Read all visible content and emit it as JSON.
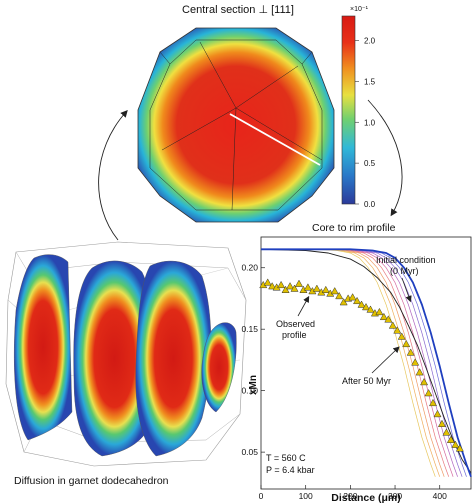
{
  "section": {
    "title": "Central section ⊥ [111]",
    "colorbar": {
      "exponent_label": "×10⁻¹",
      "ticks": [
        "2.0",
        "1.5",
        "1.0",
        "0.5",
        "0.0"
      ],
      "tick_values": [
        2.0,
        1.5,
        1.0,
        0.5,
        0.0
      ],
      "range": [
        0.0,
        2.3
      ]
    }
  },
  "block": {
    "caption": "Diffusion in garnet dodecahedron"
  },
  "profile": {
    "title": "Core to rim profile",
    "annotations": {
      "initial_line1": "Initial condition",
      "initial_line2": "(0 Myr)",
      "observed_line1": "Observed",
      "observed_line2": "profile",
      "after": "After 50 Myr",
      "temperature": "T = 560 C",
      "pressure": "P = 6.4 kbar"
    }
  },
  "chart_data": {
    "type": "line",
    "xlabel": "Distance (μm)",
    "ylabel": "xMn",
    "xlim": [
      0,
      470
    ],
    "ylim": [
      0.02,
      0.225
    ],
    "x_ticks": [
      0,
      100,
      200,
      300,
      400
    ],
    "x_tick_labels": [
      "0",
      "100",
      "200",
      "300",
      "400"
    ],
    "y_ticks": [
      0.2,
      0.15,
      0.1,
      0.05
    ],
    "y_tick_labels": [
      "0.20",
      "0.15",
      "0.10",
      "0.05"
    ],
    "series": [
      {
        "role": "initial",
        "color": "#1f3fbf",
        "x": [
          0,
          100,
          200,
          250,
          280,
          300,
          320,
          340,
          360,
          380,
          400,
          420,
          440,
          460,
          470
        ],
        "y": [
          0.215,
          0.215,
          0.215,
          0.214,
          0.212,
          0.208,
          0.2,
          0.188,
          0.17,
          0.147,
          0.12,
          0.09,
          0.062,
          0.04,
          0.03
        ]
      },
      {
        "role": "intermediate",
        "shift": [
          10,
          20,
          30,
          40,
          50,
          60,
          70,
          80
        ],
        "colors": [
          "#6a6ad8",
          "#8a6ad0",
          "#b065c0",
          "#d56aa0",
          "#e87a80",
          "#ef9a66",
          "#f0b060",
          "#e8c860"
        ]
      },
      {
        "role": "final",
        "color": "#222222",
        "x": [
          0,
          100,
          150,
          200,
          230,
          260,
          290,
          310,
          330,
          350,
          370,
          390,
          410,
          430,
          450,
          470
        ],
        "y": [
          0.215,
          0.214,
          0.212,
          0.207,
          0.201,
          0.192,
          0.18,
          0.168,
          0.153,
          0.137,
          0.118,
          0.098,
          0.078,
          0.06,
          0.044,
          0.033
        ]
      },
      {
        "role": "observed",
        "marker": "triangle",
        "color": "#e0c000",
        "x": [
          5,
          15,
          25,
          35,
          45,
          55,
          65,
          75,
          85,
          95,
          105,
          115,
          125,
          135,
          145,
          155,
          165,
          175,
          185,
          195,
          205,
          215,
          225,
          235,
          245,
          255,
          265,
          275,
          285,
          295,
          305,
          315,
          325,
          335,
          345,
          355,
          365,
          375,
          385,
          395,
          405,
          415,
          425,
          435,
          445
        ],
        "y": [
          0.186,
          0.188,
          0.185,
          0.184,
          0.186,
          0.182,
          0.185,
          0.183,
          0.187,
          0.182,
          0.184,
          0.181,
          0.183,
          0.18,
          0.182,
          0.179,
          0.181,
          0.177,
          0.172,
          0.175,
          0.176,
          0.173,
          0.17,
          0.168,
          0.166,
          0.163,
          0.164,
          0.16,
          0.158,
          0.153,
          0.149,
          0.144,
          0.138,
          0.131,
          0.123,
          0.115,
          0.107,
          0.098,
          0.09,
          0.081,
          0.073,
          0.066,
          0.06,
          0.056,
          0.053
        ]
      }
    ]
  }
}
